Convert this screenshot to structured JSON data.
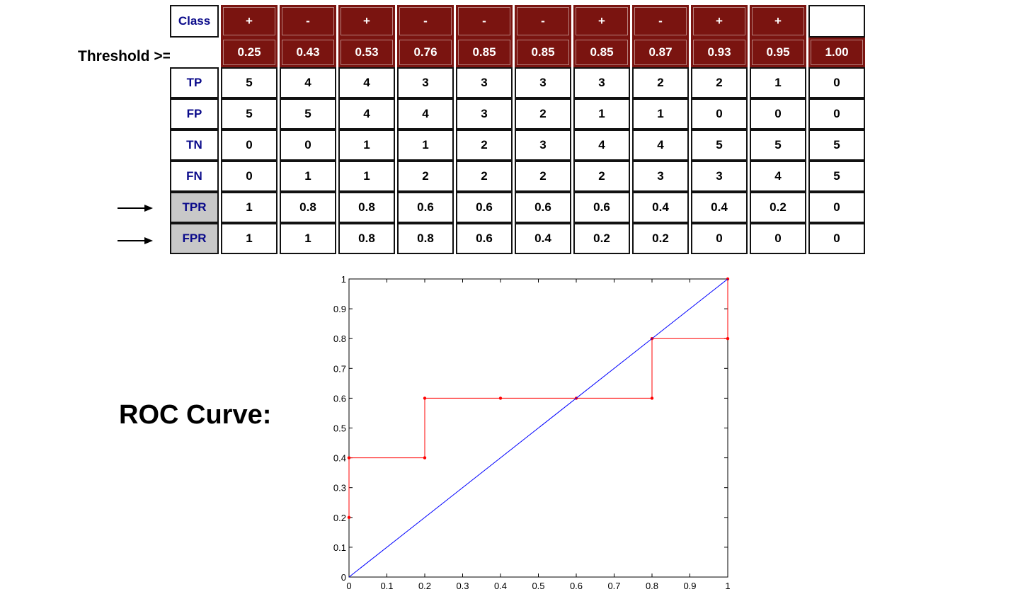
{
  "table": {
    "class_label": "Class",
    "threshold_label": "Threshold >=",
    "classes": [
      "+",
      "-",
      "+",
      "-",
      "-",
      "-",
      "+",
      "-",
      "+",
      "+",
      ""
    ],
    "thresholds": [
      "0.25",
      "0.43",
      "0.53",
      "0.76",
      "0.85",
      "0.85",
      "0.85",
      "0.87",
      "0.93",
      "0.95",
      "1.00"
    ],
    "rows": [
      {
        "label": "TP",
        "highlight": false,
        "values": [
          "5",
          "4",
          "4",
          "3",
          "3",
          "3",
          "3",
          "2",
          "2",
          "1",
          "0"
        ]
      },
      {
        "label": "FP",
        "highlight": false,
        "values": [
          "5",
          "5",
          "4",
          "4",
          "3",
          "2",
          "1",
          "1",
          "0",
          "0",
          "0"
        ]
      },
      {
        "label": "TN",
        "highlight": false,
        "values": [
          "0",
          "0",
          "1",
          "1",
          "2",
          "3",
          "4",
          "4",
          "5",
          "5",
          "5"
        ]
      },
      {
        "label": "FN",
        "highlight": false,
        "values": [
          "0",
          "1",
          "1",
          "2",
          "2",
          "2",
          "2",
          "3",
          "3",
          "4",
          "5"
        ]
      },
      {
        "label": "TPR",
        "highlight": true,
        "values": [
          "1",
          "0.8",
          "0.8",
          "0.6",
          "0.6",
          "0.6",
          "0.6",
          "0.4",
          "0.4",
          "0.2",
          "0"
        ]
      },
      {
        "label": "FPR",
        "highlight": true,
        "values": [
          "1",
          "1",
          "0.8",
          "0.8",
          "0.6",
          "0.4",
          "0.2",
          "0.2",
          "0",
          "0",
          "0"
        ]
      }
    ]
  },
  "roc_title": "ROC Curve:",
  "colors": {
    "header_bg": "#7a1410",
    "label_text": "#0a0a8a",
    "roc_line": "#ff0000",
    "diagonal": "#0000ff"
  },
  "chart_data": {
    "type": "line",
    "title": "",
    "xlabel": "",
    "ylabel": "",
    "xlim": [
      0,
      1
    ],
    "ylim": [
      0,
      1
    ],
    "xticks": [
      "0",
      "0.1",
      "0.2",
      "0.3",
      "0.4",
      "0.5",
      "0.6",
      "0.7",
      "0.8",
      "0.9",
      "1"
    ],
    "yticks": [
      "0",
      "0.1",
      "0.2",
      "0.3",
      "0.4",
      "0.5",
      "0.6",
      "0.7",
      "0.8",
      "0.9",
      "1"
    ],
    "grid": false,
    "series": [
      {
        "color": "#ff0000",
        "markers": true,
        "x": [
          0,
          0,
          0.2,
          0.2,
          0.4,
          0.6,
          0.8,
          0.8,
          1,
          1
        ],
        "y": [
          0.2,
          0.4,
          0.4,
          0.6,
          0.6,
          0.6,
          0.6,
          0.8,
          0.8,
          1
        ]
      },
      {
        "color": "#0000ff",
        "markers": false,
        "x": [
          0,
          1
        ],
        "y": [
          0,
          1
        ]
      }
    ]
  }
}
